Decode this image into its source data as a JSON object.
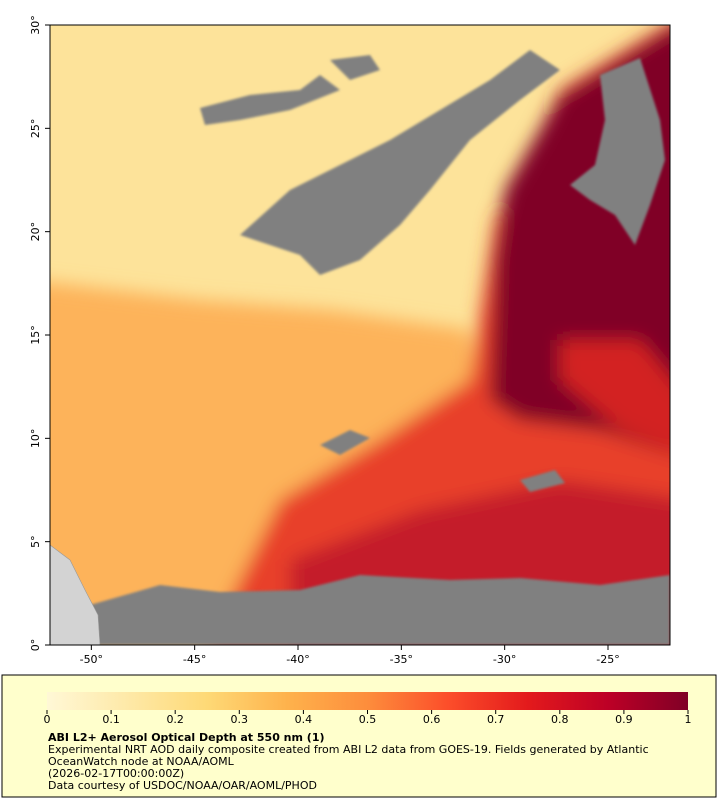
{
  "map": {
    "xlim": [
      -52,
      -22
    ],
    "ylim": [
      0,
      30
    ],
    "xticks": [
      {
        "value": -50,
        "label": "-50°"
      },
      {
        "value": -45,
        "label": "-45°"
      },
      {
        "value": -40,
        "label": "-40°"
      },
      {
        "value": -35,
        "label": "-35°"
      },
      {
        "value": -30,
        "label": "-30°"
      },
      {
        "value": -25,
        "label": "-25°"
      }
    ],
    "yticks": [
      {
        "value": 0,
        "label": "0°"
      },
      {
        "value": 5,
        "label": "5°"
      },
      {
        "value": 10,
        "label": "10°"
      },
      {
        "value": 15,
        "label": "15°"
      },
      {
        "value": 20,
        "label": "20°"
      },
      {
        "value": 25,
        "label": "25°"
      },
      {
        "value": 30,
        "label": "30°"
      }
    ]
  },
  "colorbar": {
    "lim": [
      0,
      1
    ],
    "ticks": [
      0,
      0.1,
      0.2,
      0.3,
      0.4,
      0.5,
      0.6,
      0.7,
      0.8,
      0.9,
      1
    ],
    "colors": [
      "#fff8d6",
      "#fee9a8",
      "#fed976",
      "#feb24c",
      "#fd8d3c",
      "#fc4e2a",
      "#e31a1c",
      "#bd0026",
      "#800026"
    ]
  },
  "legend": {
    "title": "ABI L2+ Aerosol Optical Depth at 550 nm (1)",
    "lines": [
      "Experimental NRT AOD daily composite created from ABI L2 data from GOES-19. Fields generated by Atlantic",
      "OceanWatch node at NOAA/AOML",
      "(2026-02-17T00:00:00Z)",
      "Data courtesy of USDOC/NOAA/OAR/AOML/PHOD"
    ]
  }
}
